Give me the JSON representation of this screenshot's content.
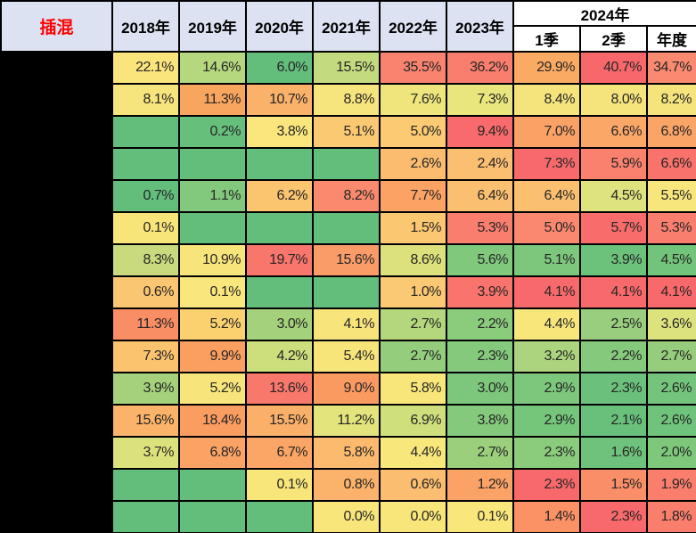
{
  "title_cell": {
    "label": "插混",
    "color": "#fe0000"
  },
  "header": {
    "years": [
      "2018年",
      "2019年",
      "2020年",
      "2021年",
      "2022年",
      "2023年"
    ],
    "group_2024": "2024年",
    "sub_columns": [
      "1季",
      "2季",
      "年度"
    ],
    "bg": "#dce2f2",
    "bg_2024": "#ffffff"
  },
  "colors": {
    "border": "#000000",
    "redacted_column": "#000000",
    "scale_min_green": "#63be7b",
    "scale_mid_yellow": "#ffeb84",
    "scale_max_red": "#f8696b"
  },
  "rows": [
    {
      "cells": [
        {
          "v": "22.1%",
          "bg": "#fae47c"
        },
        {
          "v": "14.6%",
          "bg": "#b5d77e"
        },
        {
          "v": "6.0%",
          "bg": "#63be7b"
        },
        {
          "v": "15.5%",
          "bg": "#c3da7e"
        },
        {
          "v": "35.5%",
          "bg": "#f9836e"
        },
        {
          "v": "36.2%",
          "bg": "#f97e6d"
        },
        {
          "v": "29.9%",
          "bg": "#fbaa63"
        },
        {
          "v": "40.7%",
          "bg": "#f8686b"
        },
        {
          "v": "34.7%",
          "bg": "#f98a6f"
        }
      ]
    },
    {
      "cells": [
        {
          "v": "8.1%",
          "bg": "#f6e47c"
        },
        {
          "v": "11.3%",
          "bg": "#f8a55e"
        },
        {
          "v": "10.7%",
          "bg": "#fab169"
        },
        {
          "v": "8.8%",
          "bg": "#f6e47c"
        },
        {
          "v": "7.6%",
          "bg": "#eee67d"
        },
        {
          "v": "7.3%",
          "bg": "#e9e67d"
        },
        {
          "v": "8.4%",
          "bg": "#f5e47c"
        },
        {
          "v": "8.0%",
          "bg": "#f5e47c"
        },
        {
          "v": "8.2%",
          "bg": "#f5e47c"
        }
      ]
    },
    {
      "cells": [
        {
          "v": "",
          "bg": "#63be7b"
        },
        {
          "v": "0.2%",
          "bg": "#66c07b"
        },
        {
          "v": "3.8%",
          "bg": "#fae67c"
        },
        {
          "v": "5.1%",
          "bg": "#fbc972"
        },
        {
          "v": "5.0%",
          "bg": "#fbca72"
        },
        {
          "v": "9.4%",
          "bg": "#f86a6b"
        },
        {
          "v": "7.0%",
          "bg": "#faa266"
        },
        {
          "v": "6.6%",
          "bg": "#faa768"
        },
        {
          "v": "6.8%",
          "bg": "#faa467"
        }
      ]
    },
    {
      "cells": [
        {
          "v": "",
          "bg": "#63be7b"
        },
        {
          "v": "",
          "bg": "#63be7b"
        },
        {
          "v": "",
          "bg": "#63be7b"
        },
        {
          "v": "",
          "bg": "#63be7b"
        },
        {
          "v": "2.6%",
          "bg": "#fbbc70"
        },
        {
          "v": "2.4%",
          "bg": "#fbbf71"
        },
        {
          "v": "7.3%",
          "bg": "#f8696b"
        },
        {
          "v": "5.9%",
          "bg": "#f9816d"
        },
        {
          "v": "6.6%",
          "bg": "#f9726c"
        }
      ]
    },
    {
      "cells": [
        {
          "v": "0.7%",
          "bg": "#63be7b"
        },
        {
          "v": "1.1%",
          "bg": "#82c97d"
        },
        {
          "v": "6.2%",
          "bg": "#fbc46f"
        },
        {
          "v": "8.2%",
          "bg": "#f98a6e"
        },
        {
          "v": "7.7%",
          "bg": "#fba364"
        },
        {
          "v": "6.4%",
          "bg": "#fbc06f"
        },
        {
          "v": "6.4%",
          "bg": "#fbc06f"
        },
        {
          "v": "4.5%",
          "bg": "#dfe37d"
        },
        {
          "v": "5.5%",
          "bg": "#f7e67b"
        }
      ]
    },
    {
      "cells": [
        {
          "v": "0.1%",
          "bg": "#f8e57a"
        },
        {
          "v": "",
          "bg": "#63be7b"
        },
        {
          "v": "",
          "bg": "#63be7b"
        },
        {
          "v": "",
          "bg": "#63be7b"
        },
        {
          "v": "1.5%",
          "bg": "#fbc771"
        },
        {
          "v": "5.3%",
          "bg": "#f97e6e"
        },
        {
          "v": "5.0%",
          "bg": "#f9886f"
        },
        {
          "v": "5.7%",
          "bg": "#f86d6b"
        },
        {
          "v": "5.3%",
          "bg": "#f97e6e"
        }
      ]
    },
    {
      "cells": [
        {
          "v": "8.3%",
          "bg": "#c8da7d"
        },
        {
          "v": "10.9%",
          "bg": "#f7e47b"
        },
        {
          "v": "19.7%",
          "bg": "#f9766c"
        },
        {
          "v": "15.6%",
          "bg": "#fa9c68"
        },
        {
          "v": "8.6%",
          "bg": "#dde17c"
        },
        {
          "v": "5.6%",
          "bg": "#7fc87c"
        },
        {
          "v": "5.1%",
          "bg": "#7cc77c"
        },
        {
          "v": "3.9%",
          "bg": "#6cc17b"
        },
        {
          "v": "4.5%",
          "bg": "#73c47b"
        }
      ]
    },
    {
      "cells": [
        {
          "v": "0.6%",
          "bg": "#fbc671"
        },
        {
          "v": "0.1%",
          "bg": "#f9e67c"
        },
        {
          "v": "",
          "bg": "#63be7b"
        },
        {
          "v": "",
          "bg": "#63be7b"
        },
        {
          "v": "1.0%",
          "bg": "#fbc873"
        },
        {
          "v": "3.9%",
          "bg": "#f9746c"
        },
        {
          "v": "4.1%",
          "bg": "#f8696b"
        },
        {
          "v": "4.1%",
          "bg": "#f8696b"
        },
        {
          "v": "4.1%",
          "bg": "#f8696b"
        }
      ]
    },
    {
      "cells": [
        {
          "v": "11.3%",
          "bg": "#f98e65"
        },
        {
          "v": "5.2%",
          "bg": "#fbd170"
        },
        {
          "v": "3.0%",
          "bg": "#a4d17c"
        },
        {
          "v": "4.1%",
          "bg": "#f7e47b"
        },
        {
          "v": "2.7%",
          "bg": "#b4d67d"
        },
        {
          "v": "2.2%",
          "bg": "#8bcb7c"
        },
        {
          "v": "4.4%",
          "bg": "#f9e67b"
        },
        {
          "v": "2.5%",
          "bg": "#98ce7d"
        },
        {
          "v": "3.6%",
          "bg": "#dce27c"
        }
      ]
    },
    {
      "cells": [
        {
          "v": "7.3%",
          "bg": "#fbc36e"
        },
        {
          "v": "9.9%",
          "bg": "#fa9f60"
        },
        {
          "v": "4.2%",
          "bg": "#cdde7c"
        },
        {
          "v": "5.4%",
          "bg": "#f8e57a"
        },
        {
          "v": "2.7%",
          "bg": "#94cd7c"
        },
        {
          "v": "2.3%",
          "bg": "#85c97c"
        },
        {
          "v": "3.2%",
          "bg": "#acd37d"
        },
        {
          "v": "2.2%",
          "bg": "#84c97c"
        },
        {
          "v": "2.7%",
          "bg": "#96cd7d"
        }
      ]
    },
    {
      "cells": [
        {
          "v": "3.9%",
          "bg": "#a5d17c"
        },
        {
          "v": "5.2%",
          "bg": "#f7e57b"
        },
        {
          "v": "13.6%",
          "bg": "#f8786b"
        },
        {
          "v": "9.0%",
          "bg": "#fa9a61"
        },
        {
          "v": "5.8%",
          "bg": "#f8e67a"
        },
        {
          "v": "3.0%",
          "bg": "#7dc77c"
        },
        {
          "v": "2.9%",
          "bg": "#7cc77c"
        },
        {
          "v": "2.3%",
          "bg": "#6bc17b"
        },
        {
          "v": "2.6%",
          "bg": "#74c47b"
        }
      ]
    },
    {
      "cells": [
        {
          "v": "15.6%",
          "bg": "#fbb369"
        },
        {
          "v": "18.4%",
          "bg": "#fa9d60"
        },
        {
          "v": "15.5%",
          "bg": "#fbb069"
        },
        {
          "v": "11.2%",
          "bg": "#e3e47b"
        },
        {
          "v": "6.9%",
          "bg": "#cfdf7c"
        },
        {
          "v": "3.8%",
          "bg": "#84c97c"
        },
        {
          "v": "2.9%",
          "bg": "#75c57b"
        },
        {
          "v": "2.1%",
          "bg": "#68c07b"
        },
        {
          "v": "2.6%",
          "bg": "#70c37b"
        }
      ]
    },
    {
      "cells": [
        {
          "v": "3.7%",
          "bg": "#dce27b"
        },
        {
          "v": "6.8%",
          "bg": "#fba365"
        },
        {
          "v": "6.7%",
          "bg": "#fba566"
        },
        {
          "v": "5.8%",
          "bg": "#fbba6e"
        },
        {
          "v": "4.4%",
          "bg": "#f8e77b"
        },
        {
          "v": "2.7%",
          "bg": "#9bcf7c"
        },
        {
          "v": "2.3%",
          "bg": "#8acb7c"
        },
        {
          "v": "1.6%",
          "bg": "#6ec27b"
        },
        {
          "v": "2.0%",
          "bg": "#7ec87c"
        }
      ]
    },
    {
      "cells": [
        {
          "v": "",
          "bg": "#63be7b"
        },
        {
          "v": "",
          "bg": "#63be7b"
        },
        {
          "v": "0.1%",
          "bg": "#f8e67a"
        },
        {
          "v": "0.8%",
          "bg": "#fbb26a"
        },
        {
          "v": "0.6%",
          "bg": "#fbbd6f"
        },
        {
          "v": "1.2%",
          "bg": "#fba266"
        },
        {
          "v": "2.3%",
          "bg": "#f8696b"
        },
        {
          "v": "1.5%",
          "bg": "#fa8e69"
        },
        {
          "v": "1.9%",
          "bg": "#f97e6c"
        }
      ]
    },
    {
      "cells": [
        {
          "v": "",
          "bg": "#63be7b"
        },
        {
          "v": "",
          "bg": "#63be7b"
        },
        {
          "v": "",
          "bg": "#63be7b"
        },
        {
          "v": "0.0%",
          "bg": "#f8e67a"
        },
        {
          "v": "0.0%",
          "bg": "#f8e67a"
        },
        {
          "v": "0.1%",
          "bg": "#f9e77c"
        },
        {
          "v": "1.4%",
          "bg": "#fa9265"
        },
        {
          "v": "2.3%",
          "bg": "#f8696b"
        },
        {
          "v": "1.8%",
          "bg": "#f97e6c"
        }
      ]
    }
  ],
  "chart_data": {
    "type": "table",
    "title": "插混",
    "columns": [
      "2018年",
      "2019年",
      "2020年",
      "2021年",
      "2022年",
      "2023年",
      "2024年 1季",
      "2024年 2季",
      "2024年 年度"
    ],
    "row_labels_redacted": true,
    "row_count": 15,
    "values_percent": [
      [
        22.1,
        14.6,
        6.0,
        15.5,
        35.5,
        36.2,
        29.9,
        40.7,
        34.7
      ],
      [
        8.1,
        11.3,
        10.7,
        8.8,
        7.6,
        7.3,
        8.4,
        8.0,
        8.2
      ],
      [
        null,
        0.2,
        3.8,
        5.1,
        5.0,
        9.4,
        7.0,
        6.6,
        6.8
      ],
      [
        null,
        null,
        null,
        null,
        2.6,
        2.4,
        7.3,
        5.9,
        6.6
      ],
      [
        0.7,
        1.1,
        6.2,
        8.2,
        7.7,
        6.4,
        6.4,
        4.5,
        5.5
      ],
      [
        0.1,
        null,
        null,
        null,
        1.5,
        5.3,
        5.0,
        5.7,
        5.3
      ],
      [
        8.3,
        10.9,
        19.7,
        15.6,
        8.6,
        5.6,
        5.1,
        3.9,
        4.5
      ],
      [
        0.6,
        0.1,
        null,
        null,
        1.0,
        3.9,
        4.1,
        4.1,
        4.1
      ],
      [
        11.3,
        5.2,
        3.0,
        4.1,
        2.7,
        2.2,
        4.4,
        2.5,
        3.6
      ],
      [
        7.3,
        9.9,
        4.2,
        5.4,
        2.7,
        2.3,
        3.2,
        2.2,
        2.7
      ],
      [
        3.9,
        5.2,
        13.6,
        9.0,
        5.8,
        3.0,
        2.9,
        2.3,
        2.6
      ],
      [
        15.6,
        18.4,
        15.5,
        11.2,
        6.9,
        3.8,
        2.9,
        2.1,
        2.6
      ],
      [
        3.7,
        6.8,
        6.7,
        5.8,
        4.4,
        2.7,
        2.3,
        1.6,
        2.0
      ],
      [
        null,
        null,
        0.1,
        0.8,
        0.6,
        1.2,
        2.3,
        1.5,
        1.9
      ],
      [
        null,
        null,
        null,
        0.0,
        0.0,
        0.1,
        1.4,
        2.3,
        1.8
      ]
    ],
    "color_scale": {
      "style": "3-color heatmap per cell",
      "low": "#63be7b",
      "mid": "#ffeb84",
      "high": "#f8696b"
    },
    "notes": "First column (row labels) is blacked out; blank cells rendered solid green."
  }
}
